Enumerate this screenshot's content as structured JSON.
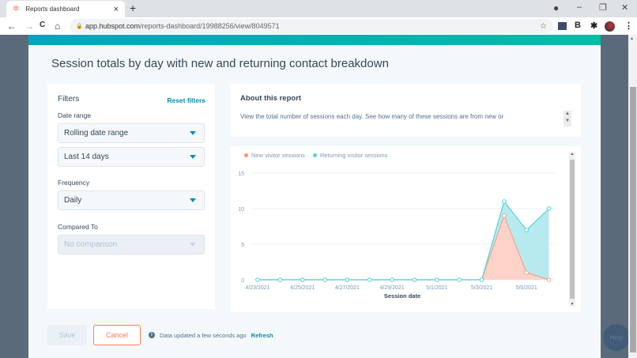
{
  "browser": {
    "tab_title": "Reports dashboard",
    "tab_close": "×",
    "new_tab": "+",
    "url_domain": "app.hubspot.com",
    "url_path": "/reports-dashboard/19988256/view/8049571",
    "nav": {
      "back": "←",
      "forward": "→",
      "reload": "C",
      "home": "⌂"
    },
    "window": {
      "minimize": "–",
      "restore": "❐",
      "close": "✕"
    },
    "extensions": {
      "b": "B",
      "puzzle": "✱",
      "menu": "⋮"
    }
  },
  "modal": {
    "title": "Session totals by day with new and returning contact breakdown",
    "accent_color": "#00a4bd"
  },
  "filters": {
    "heading": "Filters",
    "reset_label": "Reset filters",
    "date_range_label": "Date range",
    "date_range_type": "Rolling date range",
    "date_range_value": "Last 14 days",
    "frequency_label": "Frequency",
    "frequency_value": "Daily",
    "compared_label": "Compared To",
    "compared_value": "No comparison"
  },
  "about": {
    "heading": "About this report",
    "text": "View the total number of sessions each day. See how many of these sessions are from new or"
  },
  "chart_data": {
    "type": "area",
    "stacked": true,
    "title": "",
    "xlabel": "Session date",
    "ylabel": "",
    "ylim": [
      0,
      15
    ],
    "yticks": [
      0,
      5,
      10,
      15
    ],
    "x": [
      "4/23/2021",
      "4/24/2021",
      "4/25/2021",
      "4/26/2021",
      "4/27/2021",
      "4/28/2021",
      "4/29/2021",
      "4/30/2021",
      "5/1/2021",
      "5/2/2021",
      "5/3/2021",
      "5/4/2021",
      "5/5/2021",
      "5/6/2021"
    ],
    "xtick_labels": [
      "4/23/2021",
      "4/25/2021",
      "4/27/2021",
      "4/29/2021",
      "5/1/2021",
      "5/3/2021",
      "5/5/2021"
    ],
    "series": [
      {
        "name": "New visitor sessions",
        "color": "#ff8f73",
        "values": [
          0,
          0,
          0,
          0,
          0,
          0,
          0,
          0,
          0,
          0,
          0,
          9,
          1,
          0
        ]
      },
      {
        "name": "Returning visitor sessions",
        "color": "#51d3d9",
        "values": [
          0,
          0,
          0,
          0,
          0,
          0,
          0,
          0,
          0,
          0,
          0,
          2,
          6,
          10
        ]
      }
    ],
    "grid": true,
    "legend_position": "top-left"
  },
  "footer": {
    "save_label": "Save",
    "cancel_label": "Cancel",
    "info_icon": "i",
    "status_text": "Data updated a few seconds ago",
    "refresh_label": "Refresh"
  },
  "help_label": "Help"
}
